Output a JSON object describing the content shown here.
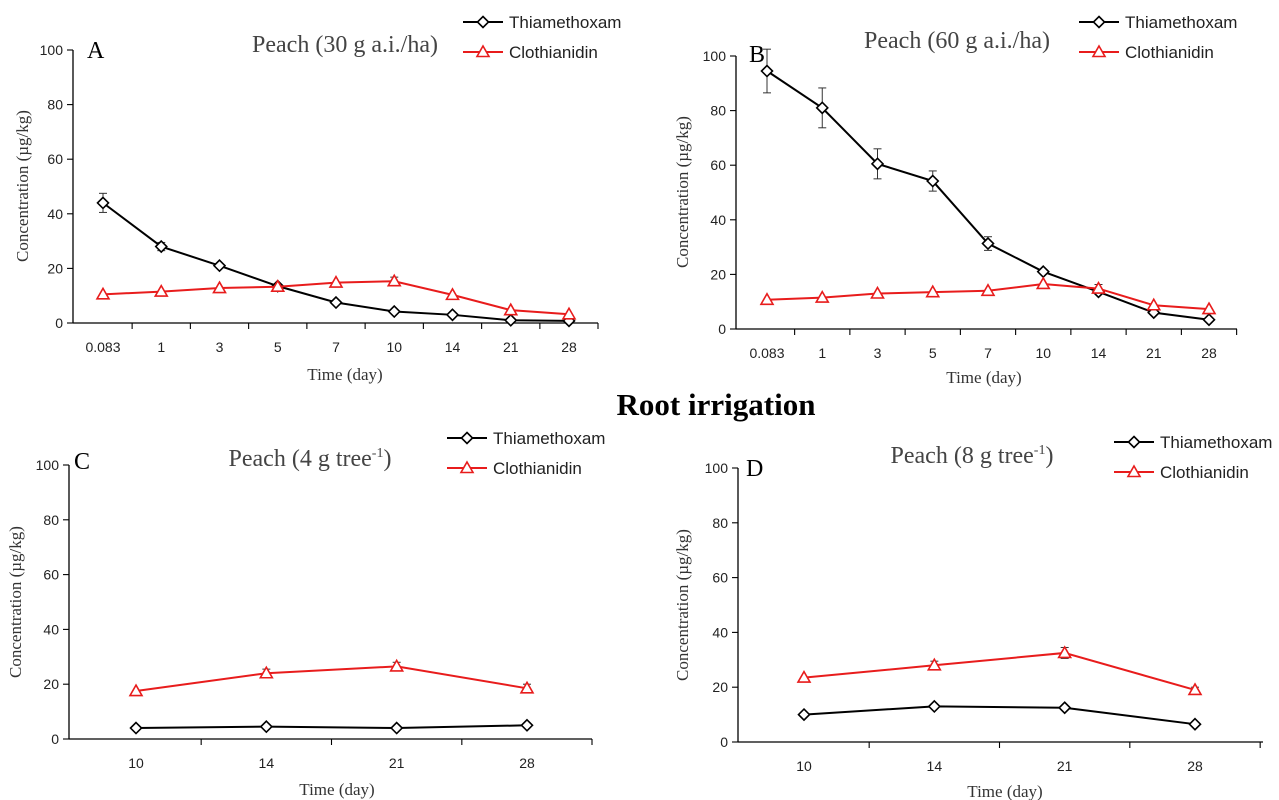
{
  "figure": {
    "section_title": "Root irrigation"
  },
  "chart_data": [
    {
      "type": "line",
      "panel": "A",
      "title": "Peach (30 g a.i./ha)",
      "xlabel": "Time (day)",
      "ylabel": "Concentration (µg/kg)",
      "ylim": [
        0,
        100
      ],
      "yticks": [
        0,
        20,
        40,
        60,
        80,
        100
      ],
      "categories": [
        "0.083",
        "1",
        "3",
        "5",
        "7",
        "10",
        "14",
        "21",
        "28"
      ],
      "series": [
        {
          "name": "Thiamethoxam",
          "color": "#000000",
          "marker": "diamond",
          "values": [
            44,
            28,
            21,
            13.5,
            7.5,
            4.2,
            3,
            1,
            0.8
          ],
          "errors": [
            3.5,
            1.5,
            0,
            0,
            0,
            0,
            0,
            0,
            0
          ]
        },
        {
          "name": "Clothianidin",
          "color": "#e81c1c",
          "marker": "triangle",
          "values": [
            10.5,
            11.5,
            12.8,
            13.3,
            14.8,
            15.3,
            10.3,
            4.7,
            3.2
          ],
          "errors": [
            0,
            0,
            0,
            0,
            0,
            1.5,
            0,
            0,
            0
          ]
        }
      ],
      "legend_position": "top-right"
    },
    {
      "type": "line",
      "panel": "B",
      "title": "Peach (60 g a.i./ha)",
      "xlabel": "Time (day)",
      "ylabel": "Concentration (µg/kg)",
      "ylim": [
        0,
        100
      ],
      "yticks": [
        0,
        20,
        40,
        60,
        80,
        100
      ],
      "categories": [
        "0.083",
        "1",
        "3",
        "5",
        "7",
        "10",
        "14",
        "21",
        "28"
      ],
      "series": [
        {
          "name": "Thiamethoxam",
          "color": "#000000",
          "marker": "diamond",
          "values": [
            94.5,
            81,
            60.5,
            54.2,
            31.3,
            21,
            13.6,
            6,
            3.4
          ],
          "errors": [
            8,
            7.3,
            5.5,
            3.7,
            2.5,
            0,
            0,
            0,
            0
          ]
        },
        {
          "name": "Clothianidin",
          "color": "#e81c1c",
          "marker": "triangle",
          "values": [
            10.7,
            11.5,
            13,
            13.5,
            14,
            16.5,
            14.8,
            8.7,
            7.3
          ],
          "errors": [
            0,
            0,
            0,
            0,
            0,
            0,
            1.5,
            0,
            0
          ]
        }
      ],
      "legend_position": "top-right"
    },
    {
      "type": "line",
      "panel": "C",
      "title_main": "Peach (4 g tree",
      "title_sup": "-1",
      "title_end": ")",
      "xlabel": "Time (day)",
      "ylabel": "Concentration (µg/kg)",
      "ylim": [
        0,
        100
      ],
      "yticks": [
        0,
        20,
        40,
        60,
        80,
        100
      ],
      "categories": [
        "10",
        "14",
        "21",
        "28"
      ],
      "series": [
        {
          "name": "Thiamethoxam",
          "color": "#000000",
          "marker": "diamond",
          "values": [
            4,
            4.5,
            4,
            5
          ],
          "errors": [
            0,
            0,
            0,
            0
          ]
        },
        {
          "name": "Clothianidin",
          "color": "#e81c1c",
          "marker": "triangle",
          "values": [
            17.5,
            24,
            26.5,
            18.5
          ],
          "errors": [
            0,
            1.5,
            1.5,
            1.5
          ]
        }
      ],
      "legend_position": "top-right"
    },
    {
      "type": "line",
      "panel": "D",
      "title_main": "Peach (8 g tree",
      "title_sup": "-1",
      "title_end": ")",
      "xlabel": "Time (day)",
      "ylabel": "Concentration (µg/kg)",
      "ylim": [
        0,
        100
      ],
      "yticks": [
        0,
        20,
        40,
        60,
        80,
        100
      ],
      "categories": [
        "10",
        "14",
        "21",
        "28"
      ],
      "series": [
        {
          "name": "Thiamethoxam",
          "color": "#000000",
          "marker": "diamond",
          "values": [
            10,
            13,
            12.5,
            6.5
          ],
          "errors": [
            0,
            0,
            0,
            0
          ]
        },
        {
          "name": "Clothianidin",
          "color": "#e81c1c",
          "marker": "triangle",
          "values": [
            23.5,
            28,
            32.5,
            19
          ],
          "errors": [
            0,
            1.5,
            2,
            1
          ]
        }
      ],
      "legend_position": "top-right"
    }
  ]
}
